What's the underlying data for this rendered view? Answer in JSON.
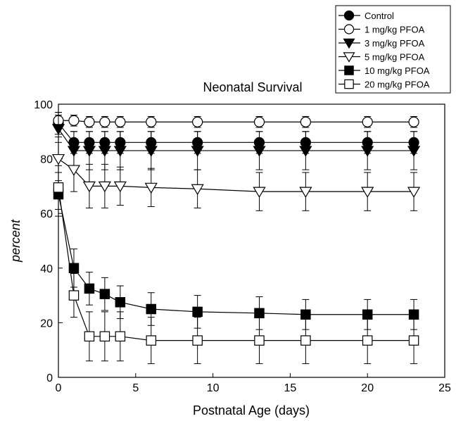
{
  "chart_data": {
    "type": "line",
    "title": "Neonatal Survival",
    "xlabel": "Postnatal Age (days)",
    "ylabel": "percent",
    "xlim": [
      0,
      25
    ],
    "ylim": [
      0,
      100
    ],
    "x_ticks": [
      "0",
      "5",
      "10",
      "15",
      "20",
      "25"
    ],
    "y_ticks": [
      "0",
      "20",
      "40",
      "60",
      "80",
      "100"
    ],
    "grid": false,
    "legend_position": "top-right",
    "x": [
      0,
      1,
      2,
      3,
      4,
      6,
      9,
      13,
      16,
      20,
      23
    ],
    "series": [
      {
        "name": "Control",
        "marker": "circle",
        "filled": true,
        "values": [
          93,
          86,
          86,
          86,
          86,
          86,
          86,
          86,
          86,
          86,
          86
        ],
        "error": [
          4,
          4,
          4,
          4,
          4,
          4,
          4,
          4,
          4,
          4,
          4
        ]
      },
      {
        "name": "1 mg/kg PFOA",
        "marker": "circle",
        "filled": false,
        "values": [
          94,
          94,
          93.5,
          93.5,
          93.5,
          93.5,
          93.5,
          93.5,
          93.5,
          93.5,
          93.5
        ],
        "error": [
          3,
          2,
          2,
          2,
          2,
          2,
          2,
          2,
          2,
          2,
          2
        ]
      },
      {
        "name": "3 mg/kg PFOA",
        "marker": "triangle-down",
        "filled": true,
        "values": [
          91,
          83,
          83,
          83,
          83,
          83,
          83,
          83,
          83,
          83,
          83
        ],
        "error": [
          5,
          7,
          7,
          7,
          7,
          7,
          7,
          7,
          7,
          7,
          7
        ]
      },
      {
        "name": "5 mg/kg PFOA",
        "marker": "triangle-down",
        "filled": false,
        "values": [
          80,
          76,
          70,
          70,
          70,
          69.5,
          69,
          68,
          68,
          68,
          68
        ],
        "error": [
          8,
          8,
          8,
          8,
          7,
          7,
          7,
          7,
          7,
          7,
          7
        ]
      },
      {
        "name": "10 mg/kg PFOA",
        "marker": "square",
        "filled": true,
        "values": [
          67,
          40,
          32.5,
          30.5,
          27.5,
          25,
          24,
          23.5,
          23,
          23,
          23
        ],
        "error": [
          8,
          7,
          6,
          6,
          6,
          6,
          6,
          6,
          5.5,
          5.5,
          5.5
        ]
      },
      {
        "name": "20 mg/kg PFOA",
        "marker": "square",
        "filled": false,
        "values": [
          69.5,
          30,
          15,
          15,
          15,
          13.5,
          13.5,
          13.5,
          13.5,
          13.5,
          13.5
        ],
        "error": [
          8,
          8,
          9,
          9,
          9,
          8.5,
          8.5,
          8.5,
          8.5,
          8.5,
          8.5
        ]
      }
    ]
  }
}
